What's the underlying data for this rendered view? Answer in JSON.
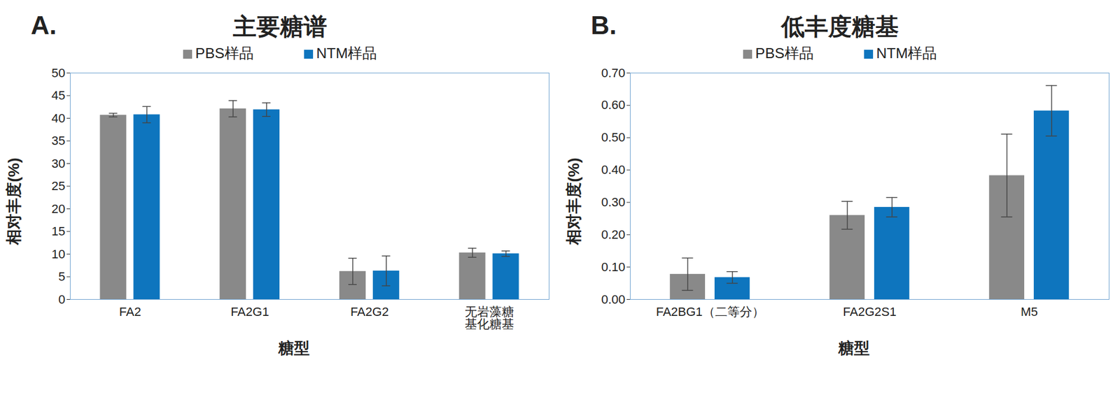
{
  "chart_data": [
    {
      "type": "bar",
      "panel": "A.",
      "title": "主要糖谱",
      "x_label": "糖型",
      "y_label": "相对丰度(%)",
      "categories": [
        "FA2",
        "FA2G1",
        "FA2G2",
        "无岩藻糖\n基化糖基"
      ],
      "series": [
        {
          "name": "PBS样品",
          "color": "#898989",
          "values": [
            40.7,
            42.1,
            6.2,
            10.3
          ],
          "errors": [
            0.4,
            1.8,
            2.9,
            1.0
          ]
        },
        {
          "name": "NTM样品",
          "color": "#0e75be",
          "values": [
            40.8,
            41.9,
            6.3,
            10.1
          ],
          "errors": [
            1.8,
            1.5,
            3.3,
            0.6
          ]
        }
      ],
      "ylim": [
        0,
        50
      ],
      "yticks": [
        0,
        5,
        10,
        15,
        20,
        25,
        30,
        35,
        40,
        45,
        50
      ],
      "legend": "top"
    },
    {
      "type": "bar",
      "panel": "B.",
      "title": "低丰度糖基",
      "x_label": "糖型",
      "y_label": "相对丰度(%)",
      "categories": [
        "FA2BG1（二等分）",
        "FA2G2S1",
        "M5"
      ],
      "series": [
        {
          "name": "PBS样品",
          "color": "#898989",
          "values": [
            0.078,
            0.26,
            0.383
          ],
          "errors": [
            0.05,
            0.043,
            0.128
          ]
        },
        {
          "name": "NTM样品",
          "color": "#0e75be",
          "values": [
            0.068,
            0.285,
            0.583
          ],
          "errors": [
            0.018,
            0.03,
            0.078
          ]
        }
      ],
      "ylim": [
        0,
        0.7
      ],
      "yticks": [
        {
          "value": 0,
          "label": "0.00"
        },
        {
          "value": 0.1,
          "label": "0.10"
        },
        {
          "value": 0.2,
          "label": "0.20"
        },
        {
          "value": 0.3,
          "label": "0.30"
        },
        {
          "value": 0.4,
          "label": "0.40"
        },
        {
          "value": 0.5,
          "label": "0.50"
        },
        {
          "value": 0.6,
          "label": "0.60"
        },
        {
          "value": 0.7,
          "label": "0.70"
        }
      ],
      "legend": "top"
    }
  ]
}
